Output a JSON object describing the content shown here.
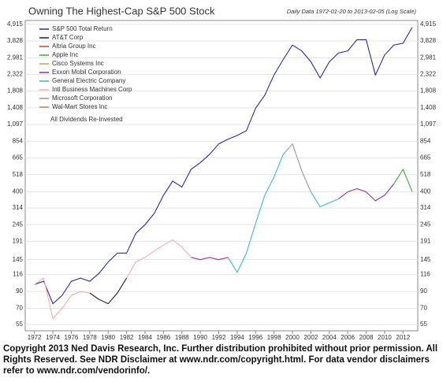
{
  "chart_data": {
    "type": "line",
    "title": "Owning The Highest-Cap S&P 500 Stock",
    "subtitle": "Daily Data 1972-01-20 to 2013-02-05 (Log Scale)",
    "annotations": [
      "All Dividends Re-Invested"
    ],
    "footer": "Copyright 2013 Ned Davis Research, Inc. Further distribution prohibited without prior permission. All Rights Reserved.  See NDR Disclaimer at www.ndr.com/copyright.html. For data vendor disclaimers refer to www.ndr.com/vendorinfo/.",
    "log_scale": true,
    "grid": true,
    "legend": "top-left",
    "x": [
      1972,
      1973,
      1974,
      1975,
      1976,
      1977,
      1978,
      1979,
      1980,
      1981,
      1982,
      1983,
      1984,
      1985,
      1986,
      1987,
      1988,
      1989,
      1990,
      1991,
      1992,
      1993,
      1994,
      1995,
      1996,
      1997,
      1998,
      1999,
      2000,
      2001,
      2002,
      2003,
      2004,
      2005,
      2006,
      2007,
      2008,
      2009,
      2010,
      2011,
      2012,
      2013
    ],
    "xlim": [
      1971,
      2013.6
    ],
    "xticks": [
      1972,
      1974,
      1976,
      1978,
      1980,
      1982,
      1984,
      1986,
      1988,
      1990,
      1992,
      1994,
      1996,
      1998,
      2000,
      2002,
      2004,
      2006,
      2008,
      2010,
      2012
    ],
    "ylim": [
      50,
      5200
    ],
    "yticks": [
      55,
      70,
      90,
      116,
      145,
      191,
      245,
      314,
      400,
      518,
      665,
      854,
      {
        "value": 1097,
        "label": "1,097"
      },
      {
        "value": 1408,
        "label": "1,408"
      },
      {
        "value": 1808,
        "label": "1,808"
      },
      {
        "value": 2322,
        "label": "2,322"
      },
      {
        "value": 2981,
        "label": "2,981"
      },
      {
        "value": 3828,
        "label": "3,828"
      },
      {
        "value": 4915,
        "label": "4,915"
      }
    ],
    "series": [
      {
        "name": "S&P 500 Total Return",
        "color": "#2a2aa8",
        "values": [
          100,
          105,
          75,
          85,
          105,
          110,
          105,
          118,
          140,
          160,
          160,
          215,
          245,
          290,
          380,
          470,
          430,
          560,
          620,
          700,
          820,
          880,
          930,
          1000,
          1400,
          1700,
          2300,
          2900,
          3600,
          3300,
          2800,
          2200,
          2800,
          3200,
          3300,
          3900,
          3900,
          2300,
          3100,
          3600,
          3700,
          4700
        ]
      },
      {
        "name": "AT&T Corp",
        "color": "#222222",
        "values": [
          null,
          null,
          null,
          null,
          null,
          null,
          88,
          80,
          75,
          88,
          110,
          null,
          null,
          null,
          null,
          null,
          null,
          null,
          null,
          null,
          null,
          null,
          null,
          null,
          null,
          null,
          null,
          null,
          null,
          null,
          null,
          null,
          null,
          null,
          null,
          null,
          null,
          null,
          null,
          null,
          null,
          null
        ]
      },
      {
        "name": "Altria Group Inc",
        "color": "#b5502a",
        "values": [
          null,
          null,
          null,
          null,
          null,
          null,
          null,
          null,
          null,
          null,
          null,
          null,
          null,
          null,
          null,
          null,
          null,
          null,
          null,
          null,
          null,
          null,
          null,
          null,
          null,
          null,
          null,
          null,
          null,
          null,
          null,
          null,
          null,
          null,
          null,
          null,
          null,
          null,
          null,
          null,
          null,
          null
        ]
      },
      {
        "name": "Apple Inc",
        "color": "#3daa3d",
        "values": [
          null,
          null,
          null,
          null,
          null,
          null,
          null,
          null,
          null,
          null,
          null,
          null,
          null,
          null,
          null,
          null,
          null,
          null,
          null,
          null,
          null,
          null,
          null,
          null,
          null,
          null,
          null,
          null,
          null,
          null,
          null,
          null,
          null,
          null,
          null,
          null,
          null,
          null,
          null,
          450,
          560,
          400
        ]
      },
      {
        "name": "Cisco Systems Inc",
        "color": "#e0a030",
        "values": [
          null,
          null,
          null,
          null,
          null,
          null,
          null,
          null,
          null,
          null,
          null,
          null,
          null,
          null,
          null,
          null,
          null,
          null,
          null,
          null,
          null,
          null,
          null,
          null,
          null,
          null,
          null,
          null,
          null,
          null,
          null,
          null,
          null,
          null,
          null,
          null,
          null,
          null,
          null,
          null,
          null,
          null
        ]
      },
      {
        "name": "Exxon Mobil Corporation",
        "color": "#993399",
        "values": [
          null,
          null,
          null,
          null,
          null,
          null,
          null,
          null,
          null,
          null,
          null,
          null,
          null,
          null,
          null,
          null,
          null,
          150,
          145,
          150,
          145,
          150,
          null,
          null,
          null,
          null,
          null,
          null,
          null,
          null,
          null,
          null,
          null,
          360,
          400,
          420,
          400,
          350,
          380,
          450,
          null,
          null
        ]
      },
      {
        "name": "General Electric Company",
        "color": "#3cbcbc",
        "values": [
          null,
          null,
          null,
          null,
          null,
          null,
          null,
          null,
          null,
          null,
          null,
          null,
          null,
          null,
          null,
          null,
          null,
          null,
          null,
          null,
          null,
          150,
          120,
          160,
          250,
          380,
          500,
          700,
          null,
          null,
          400,
          320,
          340,
          360,
          null,
          null,
          null,
          null,
          null,
          null,
          null,
          null
        ]
      },
      {
        "name": "Intl Business Machines Corp",
        "color": "#f0b0b0",
        "values": [
          100,
          110,
          60,
          70,
          85,
          90,
          88,
          null,
          null,
          null,
          110,
          140,
          150,
          165,
          180,
          195,
          175,
          150,
          null,
          null,
          null,
          null,
          null,
          null,
          null,
          null,
          null,
          null,
          null,
          null,
          null,
          null,
          null,
          null,
          null,
          null,
          null,
          null,
          null,
          null,
          null,
          null
        ]
      },
      {
        "name": "Microsoft Corporation",
        "color": "#999999",
        "values": [
          null,
          null,
          null,
          null,
          null,
          null,
          null,
          null,
          null,
          null,
          null,
          null,
          null,
          null,
          null,
          null,
          null,
          null,
          null,
          null,
          null,
          null,
          null,
          null,
          null,
          null,
          null,
          700,
          820,
          550,
          400,
          null,
          null,
          null,
          null,
          null,
          null,
          null,
          null,
          null,
          null,
          null
        ]
      },
      {
        "name": "Wal-Mart Stores Inc",
        "color": "#c08a5a",
        "values": [
          null,
          null,
          null,
          null,
          null,
          null,
          null,
          null,
          null,
          null,
          null,
          null,
          null,
          null,
          null,
          null,
          null,
          null,
          null,
          null,
          null,
          null,
          null,
          null,
          null,
          null,
          null,
          null,
          null,
          null,
          null,
          null,
          null,
          null,
          null,
          null,
          null,
          null,
          null,
          null,
          null,
          null
        ]
      }
    ]
  }
}
